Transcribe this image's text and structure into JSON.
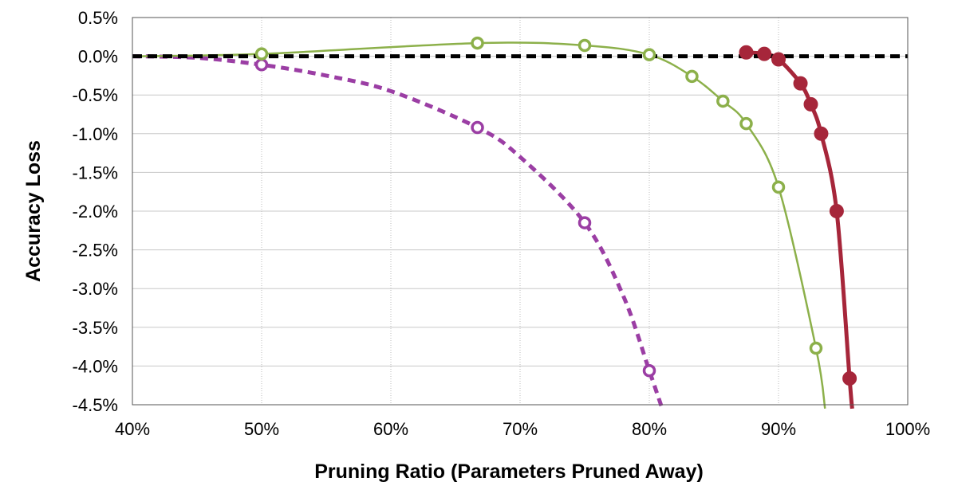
{
  "chart_data": {
    "type": "line",
    "title": "",
    "xlabel": "Pruning Ratio (Parameters Pruned Away)",
    "ylabel": "Accuracy Loss",
    "xlim": [
      40,
      100
    ],
    "ylim": [
      -4.5,
      0.5
    ],
    "x_ticks": [
      "40%",
      "50%",
      "60%",
      "70%",
      "80%",
      "90%",
      "100%"
    ],
    "y_ticks": [
      "0.5%",
      "0.0%",
      "-0.5%",
      "-1.0%",
      "-1.5%",
      "-2.0%",
      "-2.5%",
      "-3.0%",
      "-3.5%",
      "-4.0%",
      "-4.5%"
    ],
    "grid": true,
    "baseline": {
      "y": 0.0,
      "style": "dashed",
      "color": "#000000"
    },
    "series": [
      {
        "color": "#9b3ea4",
        "line_style": "dashed",
        "marker": "open-circle",
        "points": [
          {
            "x": 50.0,
            "y": -0.11
          },
          {
            "x": 66.7,
            "y": -0.92
          },
          {
            "x": 75.0,
            "y": -2.15
          },
          {
            "x": 80.0,
            "y": -4.06
          }
        ],
        "curve": [
          [
            40,
            0.0
          ],
          [
            45,
            -0.02
          ],
          [
            50,
            -0.11
          ],
          [
            55,
            -0.25
          ],
          [
            60,
            -0.45
          ],
          [
            66.7,
            -0.92
          ],
          [
            70,
            -1.3
          ],
          [
            75,
            -2.15
          ],
          [
            78,
            -3.1
          ],
          [
            80,
            -4.06
          ],
          [
            81,
            -4.55
          ]
        ]
      },
      {
        "color": "#8cb04a",
        "line_style": "solid",
        "marker": "open-circle",
        "points": [
          {
            "x": 50.0,
            "y": 0.03
          },
          {
            "x": 66.7,
            "y": 0.17
          },
          {
            "x": 75.0,
            "y": 0.14
          },
          {
            "x": 80.0,
            "y": 0.02
          },
          {
            "x": 83.3,
            "y": -0.26
          },
          {
            "x": 85.7,
            "y": -0.58
          },
          {
            "x": 87.5,
            "y": -0.87
          },
          {
            "x": 90.0,
            "y": -1.69
          },
          {
            "x": 92.9,
            "y": -3.77
          }
        ],
        "curve": [
          [
            40,
            0.0
          ],
          [
            50,
            0.03
          ],
          [
            66.7,
            0.17
          ],
          [
            75,
            0.14
          ],
          [
            80,
            0.02
          ],
          [
            83.3,
            -0.26
          ],
          [
            85.7,
            -0.58
          ],
          [
            87.5,
            -0.87
          ],
          [
            90,
            -1.69
          ],
          [
            92.9,
            -3.77
          ],
          [
            93.6,
            -4.55
          ]
        ]
      },
      {
        "color": "#a6263a",
        "line_style": "solid",
        "marker": "filled-circle",
        "points": [
          {
            "x": 87.5,
            "y": 0.05
          },
          {
            "x": 88.9,
            "y": 0.03
          },
          {
            "x": 90.0,
            "y": -0.04
          },
          {
            "x": 91.7,
            "y": -0.35
          },
          {
            "x": 92.5,
            "y": -0.62
          },
          {
            "x": 93.3,
            "y": -1.0
          },
          {
            "x": 94.5,
            "y": -2.0
          },
          {
            "x": 95.5,
            "y": -4.16
          }
        ],
        "curve": [
          [
            87.5,
            0.05
          ],
          [
            88.9,
            0.03
          ],
          [
            90,
            -0.04
          ],
          [
            91.7,
            -0.35
          ],
          [
            92.5,
            -0.62
          ],
          [
            93.3,
            -1.0
          ],
          [
            94.5,
            -2.0
          ],
          [
            95.5,
            -4.16
          ],
          [
            95.7,
            -4.55
          ]
        ]
      }
    ]
  }
}
